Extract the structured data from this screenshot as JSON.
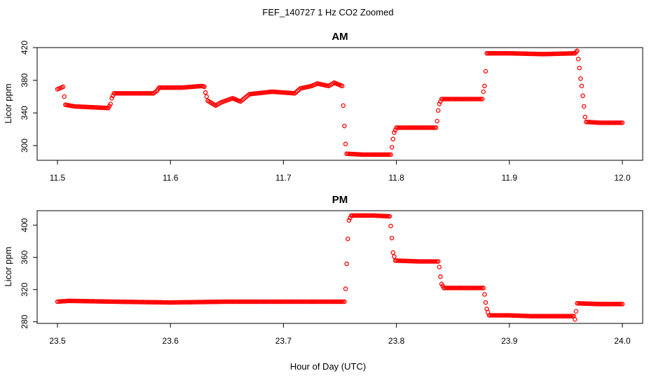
{
  "figure": {
    "title": "FEF_140727  1 Hz CO2 Zoomed",
    "xlabel": "Hour of Day (UTC)",
    "point_color": "#ff0000"
  },
  "chart_data": [
    {
      "type": "scatter",
      "title": "AM",
      "xlabel": "",
      "ylabel": "Licor ppm",
      "xlim": [
        11.5,
        12.0
      ],
      "ylim": [
        282,
        420
      ],
      "xticks": [
        "11.5",
        "11.6",
        "11.7",
        "11.8",
        "11.9",
        "12.0"
      ],
      "yticks": [
        "300",
        "340",
        "380",
        "420"
      ],
      "grid": false,
      "marker": "open-circle",
      "color": "#ff0000",
      "series": [
        {
          "points": [
            [
              11.5,
              369
            ],
            [
              11.505,
              372
            ],
            [
              11.506,
              360
            ],
            [
              11.507,
              350
            ],
            [
              11.515,
              348
            ],
            [
              11.53,
              347
            ],
            [
              11.545,
              346
            ],
            [
              11.547,
              351
            ],
            [
              11.548,
              358
            ],
            [
              11.55,
              364
            ],
            [
              11.57,
              364
            ],
            [
              11.585,
              364
            ],
            [
              11.588,
              367
            ],
            [
              11.59,
              371
            ],
            [
              11.61,
              371
            ],
            [
              11.628,
              373
            ],
            [
              11.63,
              372
            ],
            [
              11.631,
              365
            ],
            [
              11.633,
              355
            ],
            [
              11.64,
              349
            ],
            [
              11.645,
              353
            ],
            [
              11.655,
              358
            ],
            [
              11.662,
              354
            ],
            [
              11.67,
              363
            ],
            [
              11.69,
              366
            ],
            [
              11.71,
              364
            ],
            [
              11.715,
              370
            ],
            [
              11.725,
              373
            ],
            [
              11.73,
              376
            ],
            [
              11.74,
              373
            ],
            [
              11.745,
              377
            ],
            [
              11.752,
              373
            ],
            [
              11.753,
              349
            ],
            [
              11.754,
              324
            ],
            [
              11.755,
              302
            ],
            [
              11.756,
              290
            ],
            [
              11.77,
              289
            ],
            [
              11.795,
              289
            ],
            [
              11.796,
              298
            ],
            [
              11.797,
              308
            ],
            [
              11.798,
              316
            ],
            [
              11.8,
              322
            ],
            [
              11.82,
              322
            ],
            [
              11.835,
              322
            ],
            [
              11.836,
              330
            ],
            [
              11.837,
              343
            ],
            [
              11.838,
              351
            ],
            [
              11.84,
              357
            ],
            [
              11.86,
              357
            ],
            [
              11.876,
              357
            ],
            [
              11.877,
              366
            ],
            [
              11.878,
              373
            ],
            [
              11.879,
              391
            ],
            [
              11.88,
              413
            ],
            [
              11.9,
              413
            ],
            [
              11.93,
              412
            ],
            [
              11.958,
              413
            ],
            [
              11.96,
              416
            ],
            [
              11.961,
              406
            ],
            [
              11.962,
              395
            ],
            [
              11.963,
              382
            ],
            [
              11.964,
              373
            ],
            [
              11.965,
              361
            ],
            [
              11.966,
              348
            ],
            [
              11.967,
              335
            ],
            [
              11.968,
              329
            ],
            [
              11.98,
              328
            ],
            [
              12.0,
              328
            ]
          ]
        }
      ]
    },
    {
      "type": "scatter",
      "title": "PM",
      "xlabel": "",
      "ylabel": "Licor ppm",
      "xlim": [
        23.5,
        24.0
      ],
      "ylim": [
        278,
        418
      ],
      "xticks": [
        "23.5",
        "23.6",
        "23.7",
        "23.8",
        "23.9",
        "24.0"
      ],
      "yticks": [
        "280",
        "320",
        "360",
        "400"
      ],
      "grid": false,
      "marker": "open-circle",
      "color": "#ff0000",
      "series": [
        {
          "points": [
            [
              23.5,
              305
            ],
            [
              23.51,
              306
            ],
            [
              23.55,
              305
            ],
            [
              23.6,
              304
            ],
            [
              23.65,
              305
            ],
            [
              23.7,
              305
            ],
            [
              23.754,
              305
            ],
            [
              23.755,
              321
            ],
            [
              23.756,
              352
            ],
            [
              23.757,
              383
            ],
            [
              23.758,
              406
            ],
            [
              23.76,
              412
            ],
            [
              23.78,
              412
            ],
            [
              23.794,
              411
            ],
            [
              23.795,
              399
            ],
            [
              23.796,
              384
            ],
            [
              23.797,
              366
            ],
            [
              23.799,
              356
            ],
            [
              23.82,
              355
            ],
            [
              23.837,
              355
            ],
            [
              23.838,
              348
            ],
            [
              23.839,
              336
            ],
            [
              23.84,
              327
            ],
            [
              23.842,
              322
            ],
            [
              23.86,
              322
            ],
            [
              23.877,
              322
            ],
            [
              23.878,
              314
            ],
            [
              23.879,
              304
            ],
            [
              23.88,
              296
            ],
            [
              23.882,
              288
            ],
            [
              23.9,
              288
            ],
            [
              23.92,
              287
            ],
            [
              23.957,
              287
            ],
            [
              23.958,
              283
            ],
            [
              23.959,
              293
            ],
            [
              23.96,
              303
            ],
            [
              23.98,
              302
            ],
            [
              24.0,
              302
            ]
          ]
        }
      ]
    }
  ]
}
